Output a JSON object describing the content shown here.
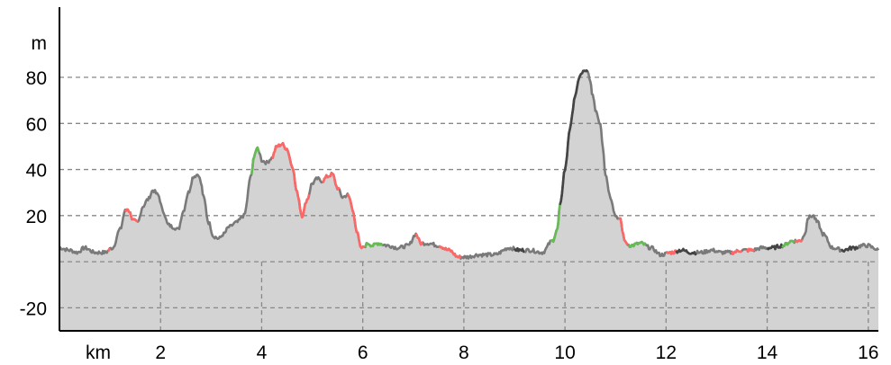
{
  "chart_data": {
    "type": "area",
    "title": "",
    "xlabel": "km",
    "ylabel": "m",
    "xlim": [
      0,
      16.2
    ],
    "ylim": [
      -30,
      112
    ],
    "grid": true,
    "x_ticks": [
      2,
      4,
      6,
      8,
      10,
      12,
      14,
      16
    ],
    "y_ticks": [
      -20,
      0,
      20,
      40,
      60,
      80
    ],
    "y_tick_labels": [
      "-20",
      "",
      "20",
      "40",
      "60",
      "80"
    ],
    "colors": {
      "fill": "#d3d3d3",
      "line_default": "#7a7a7a",
      "line_uphill": "#ff6666",
      "line_downhill": "#66bb55",
      "line_flat": "#444444",
      "grid": "#888888",
      "axis": "#000000"
    },
    "series": [
      {
        "x": [
          0.0,
          0.2,
          0.35,
          0.5,
          0.7,
          0.9,
          1.05,
          1.2,
          1.3,
          1.35,
          1.4,
          1.45,
          1.55,
          1.65,
          1.75,
          1.85,
          1.95,
          2.05,
          2.15,
          2.25,
          2.35,
          2.45,
          2.55,
          2.65,
          2.75,
          2.8,
          2.85,
          2.95,
          3.05,
          3.15,
          3.25,
          3.35,
          3.5,
          3.65,
          3.8,
          3.85,
          3.9,
          3.95,
          4.0,
          4.1,
          4.2,
          4.3,
          4.4,
          4.5,
          4.6,
          4.7,
          4.8,
          4.9,
          5.0,
          5.1,
          5.2,
          5.3,
          5.4,
          5.5,
          5.6,
          5.7,
          5.75,
          5.8,
          5.9,
          5.95,
          6.0,
          6.05,
          6.1,
          6.2,
          6.3,
          6.5,
          6.7,
          6.9,
          7.05,
          7.15,
          7.3,
          7.5,
          7.7,
          7.9,
          8.05,
          8.3,
          8.6,
          8.9,
          9.1,
          9.3,
          9.55,
          9.75,
          9.85,
          9.9,
          10.0,
          10.1,
          10.2,
          10.3,
          10.4,
          10.45,
          10.5,
          10.55,
          10.6,
          10.7,
          10.75,
          10.8,
          10.9,
          11.0,
          11.1,
          11.15,
          11.2,
          11.3,
          11.5,
          11.7,
          11.9,
          12.1,
          12.3,
          12.5,
          12.7,
          12.9,
          13.1,
          13.3,
          13.5,
          13.7,
          13.9,
          14.1,
          14.3,
          14.5,
          14.65,
          14.75,
          14.8,
          14.9,
          15.0,
          15.1,
          15.3,
          15.5,
          15.7,
          15.9,
          16.0,
          16.1,
          16.2
        ],
        "y": [
          6,
          5,
          4,
          6,
          4,
          4,
          6,
          14,
          22,
          23,
          21,
          18,
          17,
          24,
          27,
          31,
          29,
          22,
          16,
          15,
          14,
          22,
          30,
          37,
          38,
          34,
          28,
          17,
          11,
          10,
          12,
          15,
          17,
          20,
          38,
          46,
          49,
          48,
          44,
          43,
          45,
          50,
          51,
          49,
          42,
          30,
          20,
          27,
          34,
          36,
          35,
          37,
          38,
          32,
          28,
          29,
          27,
          22,
          12,
          6,
          6,
          7,
          8,
          7,
          8,
          7,
          6,
          7,
          12,
          8,
          8,
          7,
          5,
          2,
          2,
          3,
          3,
          6,
          5,
          5,
          4,
          9,
          14,
          24,
          40,
          58,
          72,
          81,
          83,
          82,
          78,
          72,
          66,
          60,
          50,
          38,
          28,
          20,
          18,
          12,
          8,
          7,
          8,
          6,
          3,
          4,
          5,
          4,
          4,
          5,
          4,
          4,
          5,
          5,
          6,
          6,
          7,
          9,
          9,
          12,
          19,
          20,
          17,
          12,
          6,
          5,
          6,
          7,
          7,
          6,
          5
        ]
      }
    ],
    "slope_colored_ranges": [
      {
        "from": 0.95,
        "to": 1.0,
        "kind": "uphill"
      },
      {
        "from": 1.3,
        "to": 1.55,
        "kind": "uphill"
      },
      {
        "from": 3.8,
        "to": 3.95,
        "kind": "downhill"
      },
      {
        "from": 4.2,
        "to": 4.95,
        "kind": "uphill"
      },
      {
        "from": 5.2,
        "to": 5.55,
        "kind": "uphill"
      },
      {
        "from": 5.7,
        "to": 6.05,
        "kind": "uphill"
      },
      {
        "from": 6.05,
        "to": 6.4,
        "kind": "downhill"
      },
      {
        "from": 7.05,
        "to": 7.2,
        "kind": "uphill"
      },
      {
        "from": 7.5,
        "to": 7.95,
        "kind": "uphill"
      },
      {
        "from": 9.0,
        "to": 9.2,
        "kind": "flat"
      },
      {
        "from": 9.7,
        "to": 9.9,
        "kind": "downhill"
      },
      {
        "from": 9.9,
        "to": 10.45,
        "kind": "flat"
      },
      {
        "from": 11.05,
        "to": 11.25,
        "kind": "uphill"
      },
      {
        "from": 11.25,
        "to": 11.6,
        "kind": "downhill"
      },
      {
        "from": 12.0,
        "to": 12.2,
        "kind": "uphill"
      },
      {
        "from": 12.2,
        "to": 12.6,
        "kind": "flat"
      },
      {
        "from": 13.3,
        "to": 13.5,
        "kind": "uphill"
      },
      {
        "from": 13.6,
        "to": 13.75,
        "kind": "uphill"
      },
      {
        "from": 14.0,
        "to": 14.3,
        "kind": "flat"
      },
      {
        "from": 14.3,
        "to": 14.55,
        "kind": "downhill"
      },
      {
        "from": 14.55,
        "to": 14.7,
        "kind": "uphill"
      },
      {
        "from": 15.45,
        "to": 15.8,
        "kind": "flat"
      }
    ]
  }
}
